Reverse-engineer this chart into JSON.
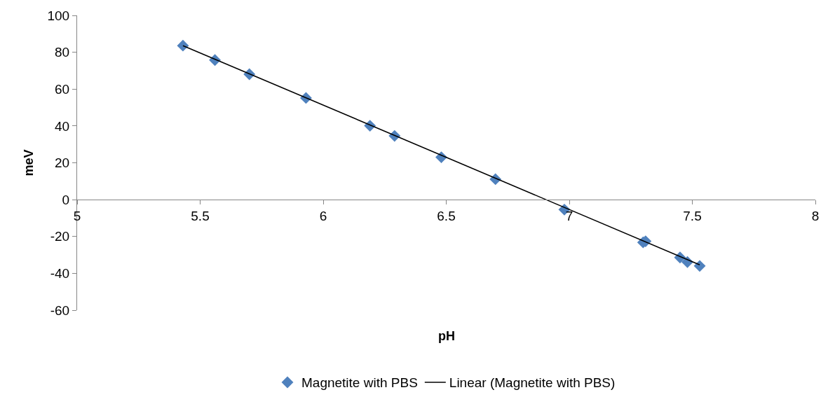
{
  "chart_data": {
    "type": "scatter",
    "xlabel": "pH",
    "ylabel": "meV",
    "xlim": [
      5,
      8
    ],
    "xticks": [
      5,
      5.5,
      6,
      6.5,
      7,
      7.5,
      8
    ],
    "ylim": [
      -60,
      100
    ],
    "yticks": [
      -60,
      -40,
      -20,
      0,
      20,
      40,
      60,
      80,
      100
    ],
    "grid": false,
    "legend": "bottom",
    "marker": "diamond",
    "series": [
      {
        "name": "Magnetite with PBS",
        "color": "#4f81bd",
        "x": [
          5.43,
          5.56,
          5.7,
          5.93,
          6.19,
          6.29,
          6.48,
          6.7,
          6.98,
          7.3,
          7.31,
          7.45,
          7.48,
          7.53
        ],
        "values": [
          83.6,
          75.8,
          68.1,
          55.2,
          40.1,
          34.6,
          23.0,
          11.1,
          -5.4,
          -23.2,
          -22.6,
          -31.4,
          -33.9,
          -36.0
        ]
      },
      {
        "name": "Linear (Magnetite with PBS)",
        "type": "line",
        "color": "#000000",
        "marker": "none",
        "line_style": "solid",
        "x": [
          5.43,
          7.53
        ],
        "values": [
          83.6,
          -35.4
        ]
      }
    ]
  }
}
